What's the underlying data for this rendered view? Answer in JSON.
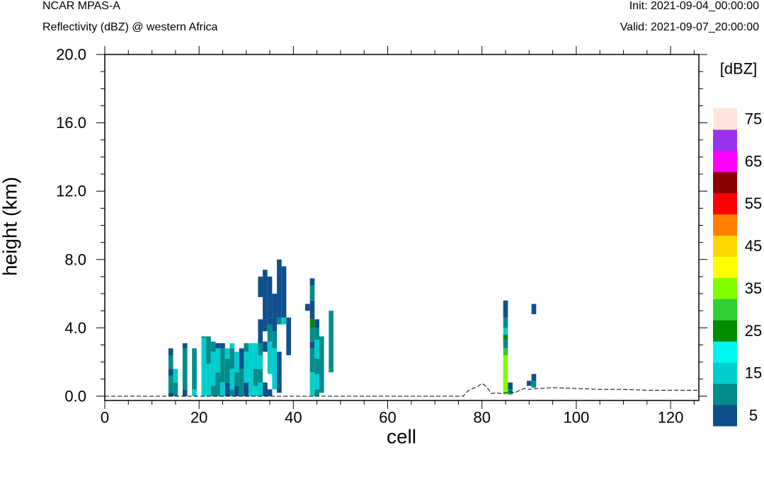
{
  "header": {
    "model": "NCAR MPAS-A",
    "field": "Reflectivity (dBZ) @ western Africa",
    "init": "Init: 2021-09-04_00:00:00",
    "valid": "Valid: 2021-09-07_20:00:00"
  },
  "chart_data": {
    "type": "heatmap",
    "title": "Reflectivity (dBZ) @ western Africa",
    "xlabel": "cell",
    "ylabel": "height (km)",
    "xlim": [
      0,
      126
    ],
    "ylim": [
      -0.25,
      20
    ],
    "x_ticks": [
      "0",
      "20",
      "40",
      "60",
      "80",
      "100",
      "120"
    ],
    "y_ticks": [
      "0.0",
      "4.0",
      "8.0",
      "12.0",
      "16.0",
      "20.0"
    ],
    "colorbar": {
      "unit": "[dBZ]",
      "labels": [
        "5",
        "15",
        "25",
        "35",
        "45",
        "55",
        "65",
        "75"
      ],
      "colors": [
        "#0F4F8C",
        "#008C8C",
        "#00CDCD",
        "#00F5F5",
        "#008C00",
        "#32CD32",
        "#7FFF00",
        "#FFFF00",
        "#FFD700",
        "#FF8000",
        "#FF0000",
        "#8B0000",
        "#FF00FF",
        "#9932EE",
        "#FFE4DC"
      ]
    },
    "terrain": [
      [
        0,
        0
      ],
      [
        76,
        0
      ],
      [
        77,
        0.3
      ],
      [
        78,
        0.45
      ],
      [
        79,
        0.55
      ],
      [
        80,
        0.75
      ],
      [
        81,
        0.55
      ],
      [
        82,
        0.15
      ],
      [
        83,
        0.2
      ],
      [
        84,
        0.15
      ],
      [
        85,
        0.2
      ],
      [
        86,
        0.25
      ],
      [
        87,
        0.2
      ],
      [
        88,
        0.35
      ],
      [
        89,
        0.45
      ],
      [
        90,
        0.4
      ],
      [
        92,
        0.45
      ],
      [
        95,
        0.5
      ],
      [
        100,
        0.45
      ],
      [
        105,
        0.4
      ],
      [
        110,
        0.4
      ],
      [
        115,
        0.35
      ],
      [
        120,
        0.35
      ],
      [
        126,
        0.35
      ]
    ],
    "cells": [
      [
        14,
        0.0,
        0.2,
        1
      ],
      [
        14,
        0.2,
        0.6,
        2
      ],
      [
        14,
        0.6,
        1.2,
        2
      ],
      [
        14,
        1.2,
        1.6,
        1
      ],
      [
        14,
        1.6,
        2.4,
        2
      ],
      [
        14,
        2.4,
        2.8,
        1
      ],
      [
        15,
        0.0,
        0.8,
        2
      ],
      [
        15,
        0.8,
        1.6,
        3
      ],
      [
        17,
        0.0,
        0.4,
        1
      ],
      [
        17,
        0.4,
        2.8,
        2
      ],
      [
        17,
        2.8,
        3.1,
        1
      ],
      [
        19,
        0.0,
        0.4,
        3
      ],
      [
        19,
        0.4,
        2.8,
        2
      ],
      [
        21,
        0.0,
        3.4,
        3
      ],
      [
        21,
        3.4,
        3.5,
        2
      ],
      [
        22,
        0.0,
        1.9,
        3
      ],
      [
        22,
        1.9,
        3.5,
        2
      ],
      [
        23,
        0.0,
        0.6,
        2
      ],
      [
        23,
        0.6,
        2.6,
        3
      ],
      [
        23,
        2.6,
        3.2,
        2
      ],
      [
        24,
        0.0,
        1.4,
        2
      ],
      [
        24,
        1.4,
        2.8,
        3
      ],
      [
        24,
        2.8,
        3.1,
        1
      ],
      [
        25,
        0.0,
        0.8,
        3
      ],
      [
        25,
        0.8,
        2.8,
        2
      ],
      [
        25,
        2.8,
        3.1,
        1
      ],
      [
        26,
        0.0,
        0.8,
        1
      ],
      [
        26,
        0.8,
        2.2,
        2
      ],
      [
        26,
        2.2,
        2.8,
        3
      ],
      [
        27,
        0.0,
        0.4,
        2
      ],
      [
        27,
        0.4,
        1.6,
        3
      ],
      [
        27,
        1.6,
        2.8,
        2
      ],
      [
        27,
        2.8,
        3.1,
        3
      ],
      [
        28,
        0.0,
        0.6,
        1
      ],
      [
        28,
        0.6,
        1.4,
        2
      ],
      [
        28,
        1.4,
        2.6,
        3
      ],
      [
        29,
        0.0,
        1.6,
        2
      ],
      [
        29,
        1.6,
        2.8,
        1
      ],
      [
        30,
        0.0,
        0.8,
        1
      ],
      [
        30,
        0.8,
        2.6,
        3
      ],
      [
        30,
        2.6,
        3.1,
        2
      ],
      [
        31,
        0.0,
        3.1,
        3
      ],
      [
        32,
        0.0,
        0.6,
        3
      ],
      [
        32,
        0.6,
        1.6,
        2
      ],
      [
        32,
        1.6,
        3.1,
        3
      ],
      [
        33,
        0.0,
        0.8,
        3
      ],
      [
        33,
        0.8,
        1.6,
        2
      ],
      [
        33,
        1.6,
        2.4,
        3
      ],
      [
        33,
        2.4,
        3.1,
        2
      ],
      [
        33,
        3.1,
        3.7,
        1
      ],
      [
        33,
        3.7,
        4.5,
        1
      ],
      [
        33,
        5.8,
        6.9,
        1
      ],
      [
        33,
        6.9,
        7.0,
        1
      ],
      [
        34,
        0.0,
        0.8,
        1
      ],
      [
        34,
        2.6,
        3.2,
        1
      ],
      [
        34,
        3.8,
        4.5,
        1
      ],
      [
        34,
        4.5,
        7.0,
        1
      ],
      [
        34,
        7.0,
        7.4,
        1
      ],
      [
        35,
        0.0,
        0.4,
        1
      ],
      [
        35,
        1.3,
        3.2,
        3
      ],
      [
        35,
        3.2,
        4.2,
        2
      ],
      [
        35,
        4.2,
        4.6,
        1
      ],
      [
        35,
        4.6,
        7.0,
        1
      ],
      [
        36,
        0.4,
        2.8,
        3
      ],
      [
        36,
        2.8,
        3.8,
        2
      ],
      [
        36,
        3.8,
        4.8,
        1
      ],
      [
        36,
        4.8,
        6.0,
        1
      ],
      [
        37,
        0.2,
        2.6,
        1
      ],
      [
        37,
        4.2,
        4.6,
        2
      ],
      [
        37,
        4.6,
        8.0,
        1
      ],
      [
        38,
        4.2,
        4.6,
        3
      ],
      [
        38,
        4.6,
        6.0,
        1
      ],
      [
        38,
        6.0,
        7.6,
        1
      ],
      [
        39,
        2.4,
        4.6,
        1
      ],
      [
        43,
        5.0,
        5.4,
        1
      ],
      [
        44,
        0.0,
        1.4,
        3
      ],
      [
        44,
        1.4,
        2.8,
        2
      ],
      [
        44,
        2.8,
        3.2,
        1
      ],
      [
        44,
        3.2,
        4.0,
        2
      ],
      [
        44,
        4.0,
        4.5,
        5
      ],
      [
        44,
        4.5,
        5.6,
        1
      ],
      [
        44,
        5.6,
        6.5,
        2
      ],
      [
        44,
        6.5,
        6.9,
        1
      ],
      [
        45,
        0.0,
        0.4,
        2
      ],
      [
        45,
        0.4,
        1.3,
        3
      ],
      [
        45,
        1.3,
        2.2,
        2
      ],
      [
        45,
        2.2,
        3.3,
        3
      ],
      [
        45,
        3.3,
        4.0,
        2
      ],
      [
        45,
        4.0,
        4.5,
        1
      ],
      [
        46,
        0.2,
        3.5,
        2
      ],
      [
        48,
        1.4,
        5.0,
        2
      ],
      [
        85,
        0.1,
        2.4,
        7
      ],
      [
        85,
        2.4,
        2.8,
        6
      ],
      [
        85,
        2.8,
        3.3,
        2
      ],
      [
        85,
        3.3,
        3.6,
        5
      ],
      [
        85,
        3.6,
        4.0,
        3
      ],
      [
        85,
        4.0,
        4.6,
        2
      ],
      [
        85,
        4.6,
        5.6,
        1
      ],
      [
        86,
        0.1,
        0.4,
        2
      ],
      [
        86,
        0.4,
        0.8,
        1
      ],
      [
        90,
        0.6,
        0.9,
        1
      ],
      [
        91,
        0.5,
        0.9,
        2
      ],
      [
        91,
        0.9,
        1.3,
        1
      ],
      [
        91,
        4.8,
        5.4,
        1
      ]
    ]
  }
}
